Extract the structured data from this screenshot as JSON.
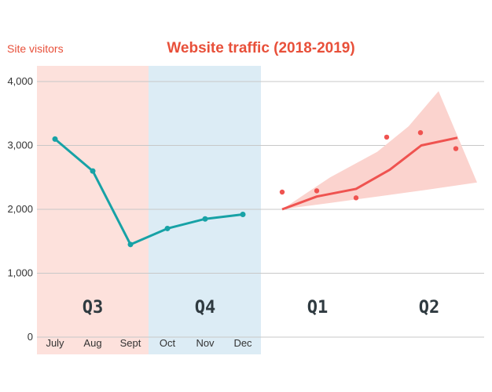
{
  "chart_data": {
    "type": "line",
    "title": "Website traffic (2018-2019)",
    "ylabel": "Site visitors",
    "ylim": [
      0,
      4000
    ],
    "y_ticks": [
      "0",
      "1,000",
      "2,000",
      "3,000",
      "4,000"
    ],
    "categories": [
      "July",
      "Aug",
      "Sept",
      "Oct",
      "Nov",
      "Dec"
    ],
    "quarters": [
      "Q3",
      "Q4",
      "Q1",
      "Q2"
    ],
    "grid": true,
    "series": [
      {
        "values": [
          3100,
          2600,
          1450,
          1700,
          1850,
          1920
        ]
      }
    ],
    "forecast": {
      "trend": [
        2000,
        2200,
        2320,
        2620,
        3000,
        3120
      ],
      "upper": [
        2000,
        2500,
        2900,
        3300,
        3850
      ],
      "lower": [
        2000,
        2100,
        2200,
        2300,
        2420
      ],
      "points": [
        2270,
        2290,
        2180,
        3130,
        3200,
        2950
      ]
    },
    "colors": {
      "title": "#e8503a",
      "actual_line": "#17a2a6",
      "forecast_line": "#ef5350",
      "forecast_band": "#fbd3ce",
      "q3_background": "#fde1dc",
      "q4_background": "#dcecf5",
      "grid": "#c8c8c8"
    }
  }
}
